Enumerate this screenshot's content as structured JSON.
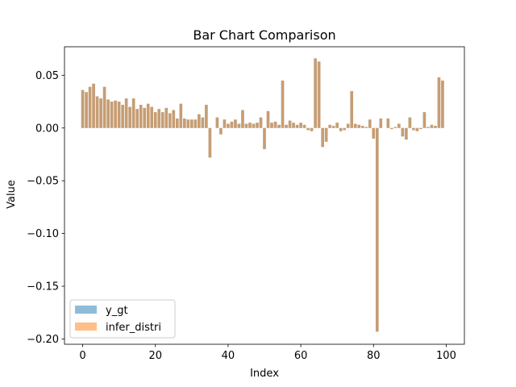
{
  "chart_data": {
    "type": "bar",
    "title": "Bar Chart Comparison",
    "xlabel": "Index",
    "ylabel": "Value",
    "xlim": [
      -5,
      105
    ],
    "ylim": [
      -0.205,
      0.077
    ],
    "x_ticks": [
      0,
      20,
      40,
      60,
      80,
      100
    ],
    "x_tick_labels": [
      "0",
      "20",
      "40",
      "60",
      "80",
      "100"
    ],
    "y_ticks": [
      0.05,
      0.0,
      -0.05,
      -0.1,
      -0.15,
      -0.2
    ],
    "y_tick_labels": [
      "0.05",
      "0.00",
      "−0.05",
      "−0.10",
      "−0.15",
      "−0.20"
    ],
    "grid": false,
    "legend_position": "lower-left",
    "x": [
      0,
      1,
      2,
      3,
      4,
      5,
      6,
      7,
      8,
      9,
      10,
      11,
      12,
      13,
      14,
      15,
      16,
      17,
      18,
      19,
      20,
      21,
      22,
      23,
      24,
      25,
      26,
      27,
      28,
      29,
      30,
      31,
      32,
      33,
      34,
      35,
      36,
      37,
      38,
      39,
      40,
      41,
      42,
      43,
      44,
      45,
      46,
      47,
      48,
      49,
      50,
      51,
      52,
      53,
      54,
      55,
      56,
      57,
      58,
      59,
      60,
      61,
      62,
      63,
      64,
      65,
      66,
      67,
      68,
      69,
      70,
      71,
      72,
      73,
      74,
      75,
      76,
      77,
      78,
      79,
      80,
      81,
      82,
      83,
      84,
      85,
      86,
      87,
      88,
      89,
      90,
      91,
      92,
      93,
      94,
      95,
      96,
      97,
      98,
      99
    ],
    "series": [
      {
        "name": "y_gt",
        "color": "#1f77b4",
        "opacity": 0.5,
        "values": [
          0.036,
          0.034,
          0.039,
          0.042,
          0.03,
          0.028,
          0.039,
          0.027,
          0.025,
          0.026,
          0.025,
          0.022,
          0.028,
          0.02,
          0.028,
          0.018,
          0.022,
          0.019,
          0.023,
          0.02,
          0.015,
          0.018,
          0.015,
          0.019,
          0.014,
          0.017,
          0.009,
          0.023,
          0.009,
          0.008,
          0.008,
          0.008,
          0.013,
          0.01,
          0.022,
          -0.028,
          0.0,
          0.01,
          -0.006,
          0.008,
          0.004,
          0.006,
          0.008,
          0.004,
          0.017,
          0.004,
          0.005,
          0.004,
          0.005,
          0.01,
          -0.02,
          0.016,
          0.005,
          0.006,
          0.003,
          0.045,
          0.003,
          0.007,
          0.005,
          0.003,
          0.005,
          0.003,
          -0.002,
          -0.003,
          0.066,
          0.063,
          -0.018,
          -0.013,
          0.003,
          0.002,
          0.005,
          -0.003,
          -0.002,
          0.004,
          0.035,
          0.004,
          0.003,
          0.002,
          0.001,
          0.008,
          -0.01,
          -0.193,
          0.009,
          0.0,
          0.009,
          -0.001,
          0.001,
          0.004,
          -0.008,
          -0.011,
          0.01,
          -0.002,
          -0.003,
          -0.001,
          0.015,
          0.001,
          0.003,
          0.002,
          0.048,
          0.045
        ]
      },
      {
        "name": "infer_distri",
        "color": "#ff7f0e",
        "opacity": 0.5,
        "values": [
          0.036,
          0.034,
          0.039,
          0.042,
          0.03,
          0.028,
          0.039,
          0.027,
          0.025,
          0.026,
          0.025,
          0.022,
          0.028,
          0.02,
          0.028,
          0.018,
          0.022,
          0.019,
          0.023,
          0.02,
          0.015,
          0.018,
          0.015,
          0.019,
          0.014,
          0.017,
          0.009,
          0.023,
          0.009,
          0.008,
          0.008,
          0.008,
          0.013,
          0.01,
          0.022,
          -0.028,
          0.0,
          0.01,
          -0.006,
          0.008,
          0.004,
          0.006,
          0.008,
          0.004,
          0.017,
          0.004,
          0.005,
          0.004,
          0.005,
          0.01,
          -0.02,
          0.016,
          0.005,
          0.006,
          0.003,
          0.045,
          0.003,
          0.007,
          0.005,
          0.003,
          0.005,
          0.003,
          -0.002,
          -0.003,
          0.066,
          0.063,
          -0.018,
          -0.013,
          0.003,
          0.002,
          0.005,
          -0.003,
          -0.002,
          0.004,
          0.035,
          0.004,
          0.003,
          0.002,
          0.001,
          0.008,
          -0.01,
          -0.193,
          0.009,
          0.0,
          0.009,
          -0.001,
          0.001,
          0.004,
          -0.008,
          -0.011,
          0.01,
          -0.002,
          -0.003,
          -0.001,
          0.015,
          0.001,
          0.003,
          0.002,
          0.048,
          0.045
        ]
      }
    ]
  }
}
